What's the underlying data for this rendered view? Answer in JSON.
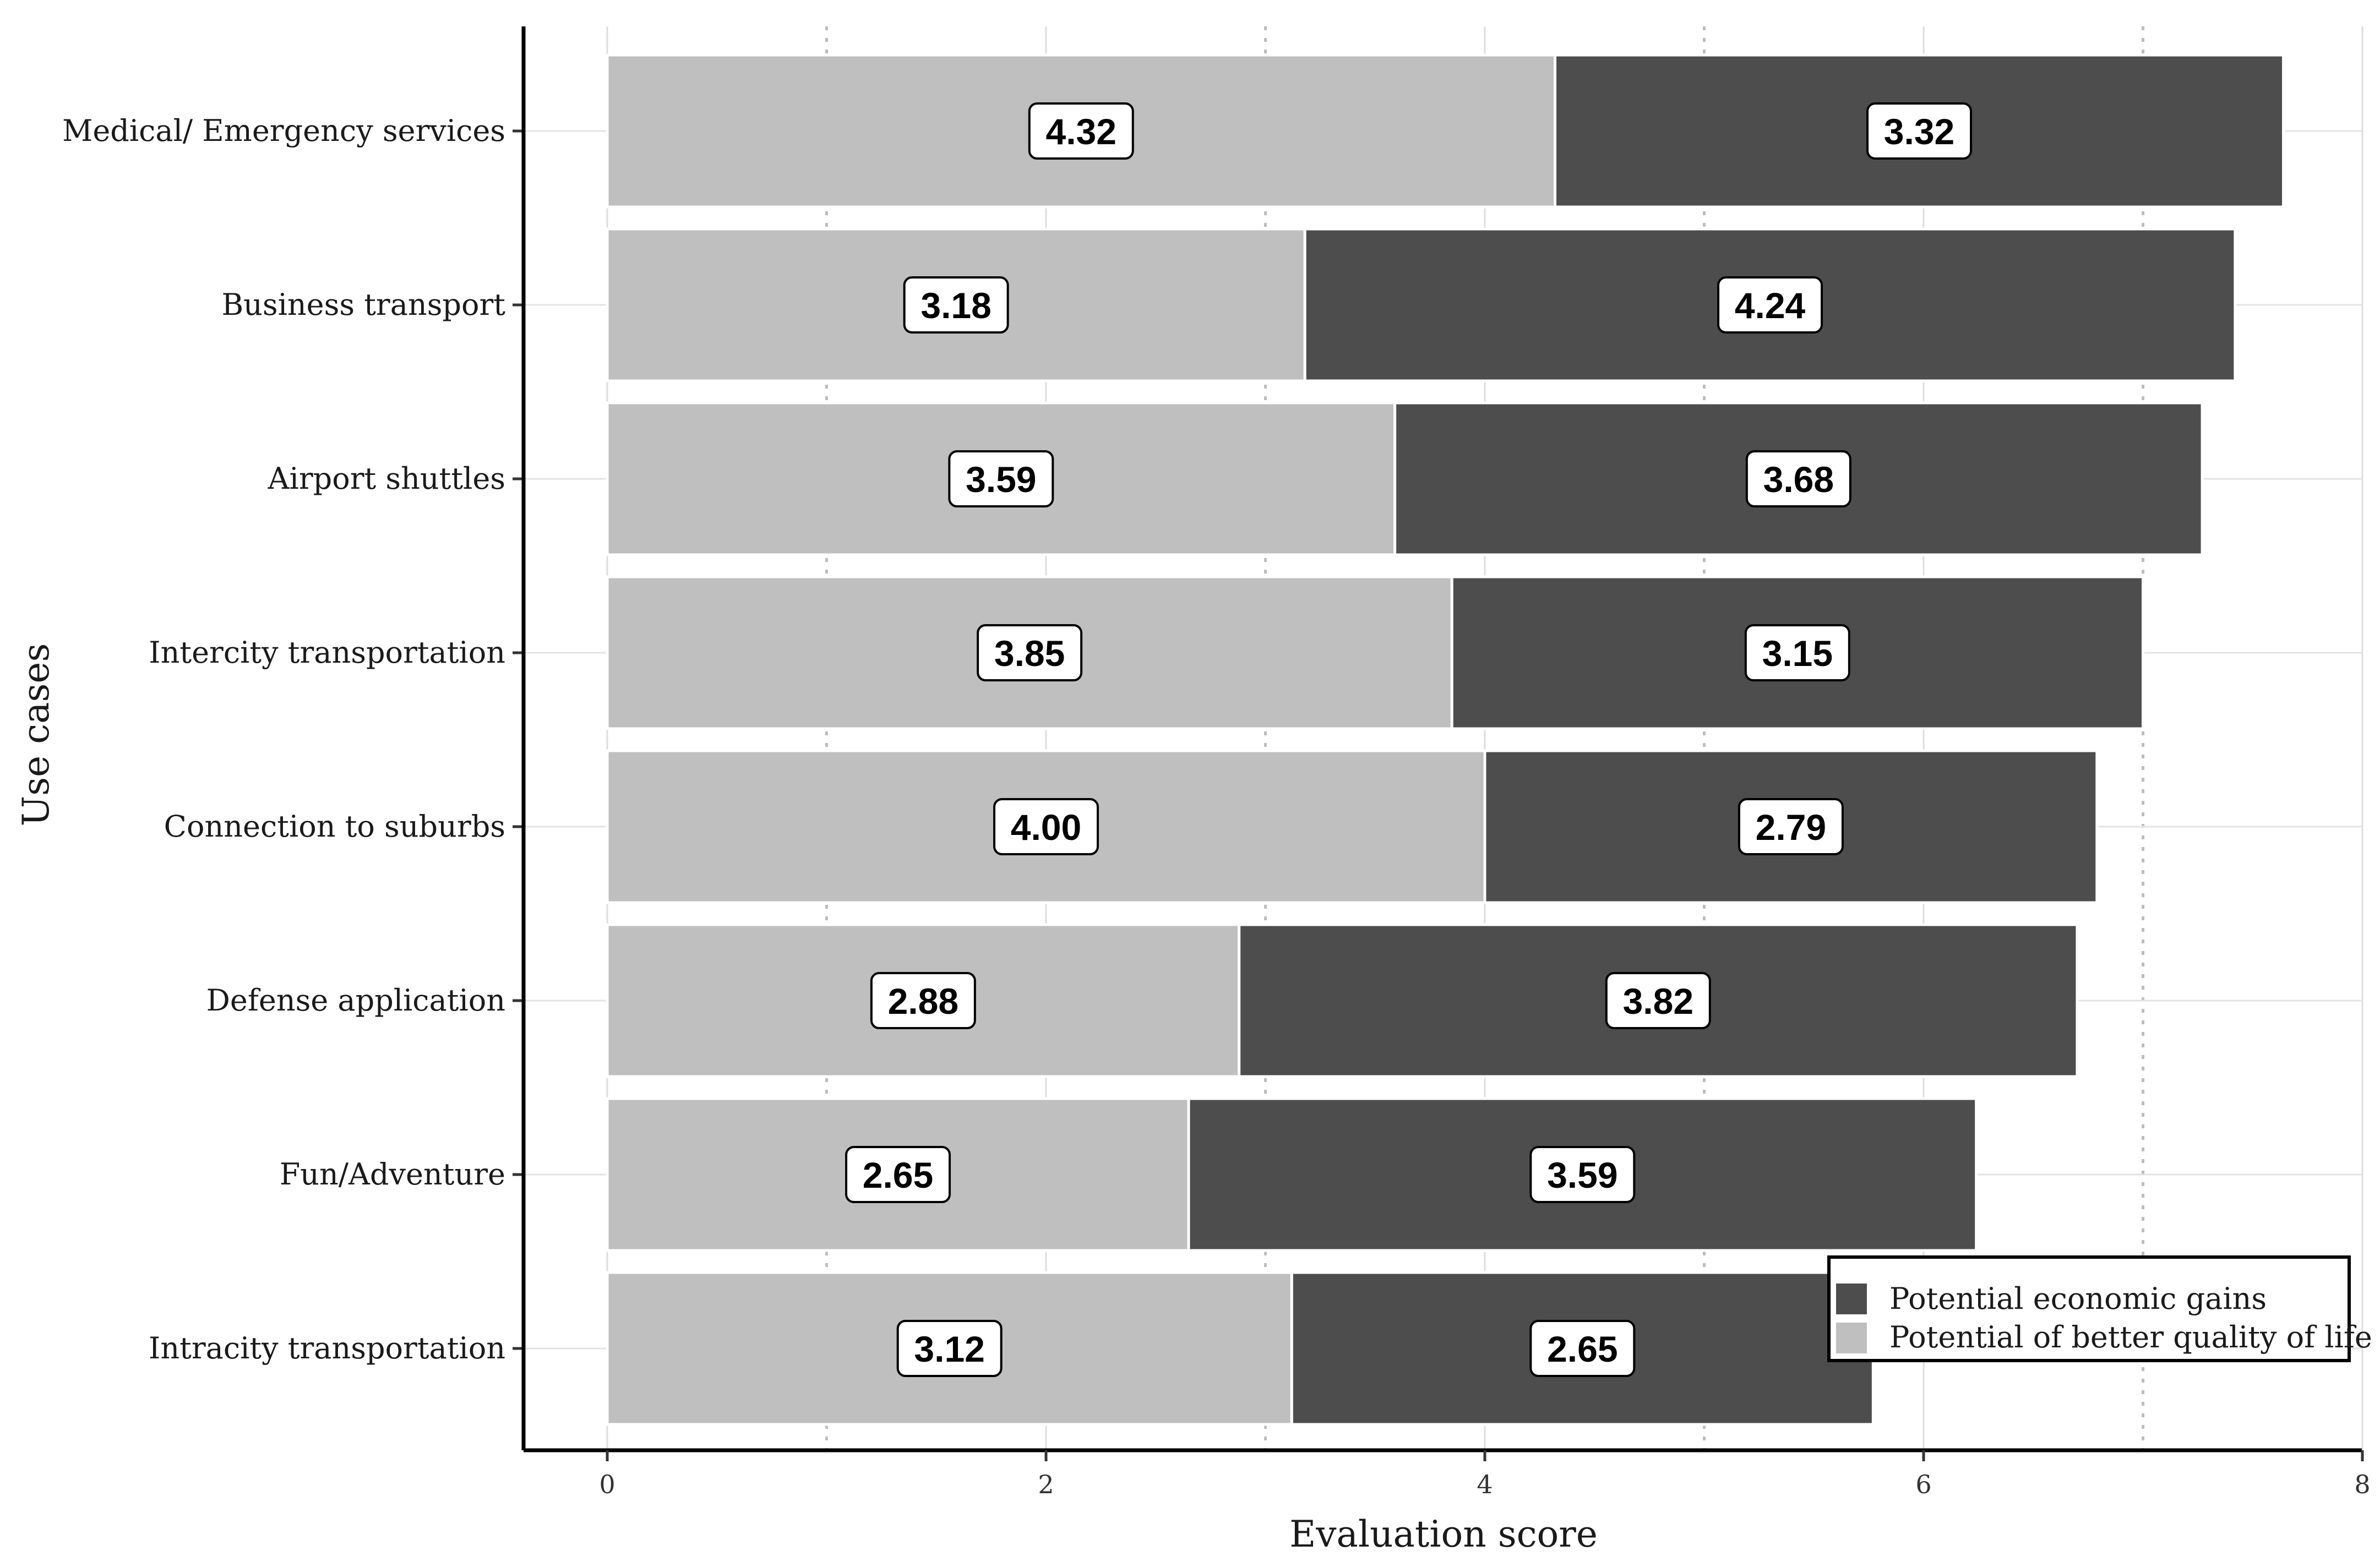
{
  "chart_data": {
    "type": "bar",
    "orientation": "horizontal",
    "stacked": true,
    "categories": [
      "Medical/ Emergency services",
      "Business transport",
      "Airport shuttles",
      "Intercity transportation",
      "Connection to suburbs",
      "Defense application",
      "Fun/Adventure",
      "Intracity transportation"
    ],
    "series": [
      {
        "name": "Potential of better quality of life",
        "color": "#bfbfbf",
        "values": [
          4.32,
          3.18,
          3.59,
          3.85,
          4.0,
          2.88,
          2.65,
          3.12
        ],
        "labels": [
          "4.32",
          "3.18",
          "3.59",
          "3.85",
          "4.00",
          "2.88",
          "2.65",
          "3.12"
        ]
      },
      {
        "name": "Potential economic gains",
        "color": "#4d4d4d",
        "values": [
          3.32,
          4.24,
          3.68,
          3.15,
          2.79,
          3.82,
          3.59,
          2.65
        ],
        "labels": [
          "3.32",
          "4.24",
          "3.68",
          "3.15",
          "2.79",
          "3.82",
          "3.59",
          "2.65"
        ]
      }
    ],
    "legend_order": [
      "Potential economic gains",
      "Potential of better quality of life"
    ],
    "xlabel": "Evaluation score",
    "ylabel": "Use cases",
    "xlim": [
      0,
      8
    ],
    "xticks": [
      0,
      2,
      4,
      6,
      8
    ],
    "xtick_labels": [
      "0",
      "2",
      "4",
      "6",
      "8"
    ],
    "grid": true,
    "dotted_reference_lines": [
      1,
      3,
      5,
      7
    ],
    "legend_position": "bottom-right"
  }
}
